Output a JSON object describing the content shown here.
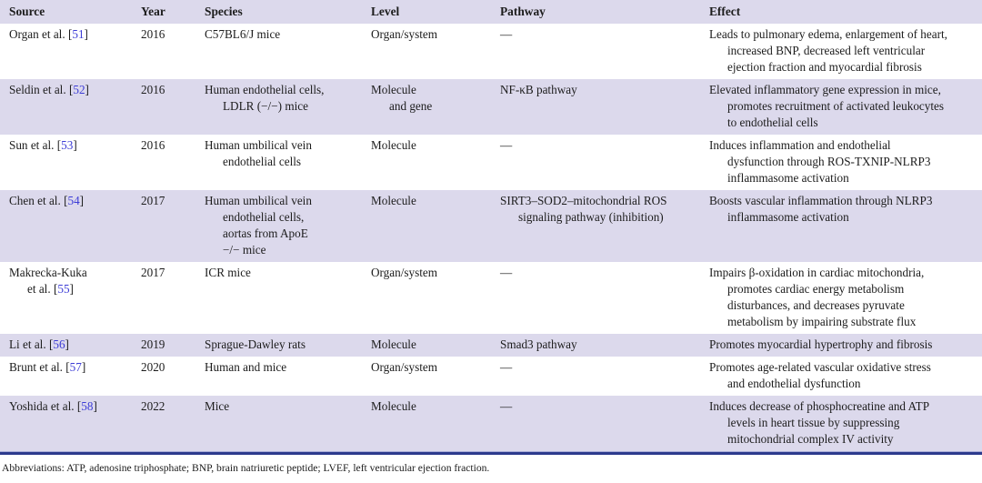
{
  "colors": {
    "row_shade": "#dcd9ec",
    "bottom_rule": "#2c3a8d",
    "citation_blue": "#3c3cd6",
    "text": "#1c1c1c"
  },
  "table": {
    "columns": [
      "Source",
      "Year",
      "Species",
      "Level",
      "Pathway",
      "Effect"
    ],
    "rows": [
      {
        "source": {
          "name": "Organ et al.",
          "ref": "51"
        },
        "year": "2016",
        "species": "C57BL6/J mice",
        "level": "Organ/system",
        "pathway": "—",
        "effect": "Leads to pulmonary edema, enlargement of heart,\nincreased BNP, decreased left ventricular\nejection fraction and myocardial fibrosis"
      },
      {
        "source": {
          "name": "Seldin et al.",
          "ref": "52"
        },
        "year": "2016",
        "species": "Human endothelial cells,\nLDLR (−/−) mice",
        "level": "Molecule\nand gene",
        "pathway": "NF-κB pathway",
        "effect": "Elevated inflammatory gene expression in mice,\npromotes recruitment of activated leukocytes\nto endothelial cells"
      },
      {
        "source": {
          "name": "Sun et al.",
          "ref": "53"
        },
        "year": "2016",
        "species": "Human umbilical vein\nendothelial cells",
        "level": "Molecule",
        "pathway": "—",
        "effect": "Induces inflammation and endothelial\ndysfunction through ROS-TXNIP-NLRP3\ninflammasome activation"
      },
      {
        "source": {
          "name": "Chen et al.",
          "ref": "54"
        },
        "year": "2017",
        "species": "Human umbilical vein\nendothelial cells,\naortas from ApoE\n−/− mice",
        "level": "Molecule",
        "pathway": "SIRT3–SOD2–mitochondrial ROS\nsignaling pathway (inhibition)",
        "effect": "Boosts vascular inflammation through NLRP3\ninflammasome activation"
      },
      {
        "source": {
          "name": "Makrecka-Kuka\net al.",
          "ref": "55"
        },
        "year": "2017",
        "species": "ICR mice",
        "level": "Organ/system",
        "pathway": "—",
        "effect": "Impairs β-oxidation in cardiac mitochondria,\npromotes cardiac energy metabolism\ndisturbances, and decreases pyruvate\nmetabolism by impairing substrate flux"
      },
      {
        "source": {
          "name": "Li et al.",
          "ref": "56"
        },
        "year": "2019",
        "species": "Sprague-Dawley rats",
        "level": "Molecule",
        "pathway": "Smad3 pathway",
        "effect": "Promotes myocardial hypertrophy and fibrosis"
      },
      {
        "source": {
          "name": "Brunt et al.",
          "ref": "57"
        },
        "year": "2020",
        "species": "Human and mice",
        "level": "Organ/system",
        "pathway": "—",
        "effect": "Promotes age-related vascular oxidative stress\nand endothelial dysfunction"
      },
      {
        "source": {
          "name": "Yoshida et al.",
          "ref": "58"
        },
        "year": "2022",
        "species": "Mice",
        "level": "Molecule",
        "pathway": "—",
        "effect": "Induces decrease of phosphocreatine and ATP\nlevels in heart tissue by suppressing\nmitochondrial complex IV activity"
      }
    ]
  },
  "footer": {
    "note": "Abbreviations: ATP, adenosine triphosphate; BNP, brain natriuretic peptide; LVEF, left ventricular ejection fraction."
  }
}
